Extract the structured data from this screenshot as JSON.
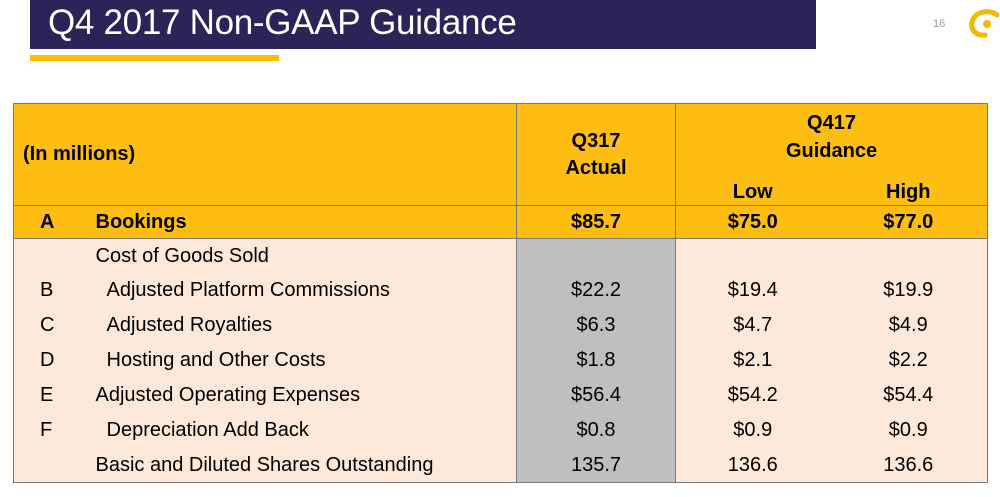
{
  "header": {
    "title": "Q4 2017 Non-GAAP Guidance",
    "page_number": "16"
  },
  "table": {
    "headers": {
      "units": "(In millions)",
      "q317_line1": "Q317",
      "q317_line2": "Actual",
      "q417_line1": "Q417",
      "q417_line2": "Guidance",
      "low": "Low",
      "high": "High"
    },
    "bookings": {
      "letter": "A",
      "label": "Bookings",
      "actual": "$85.7",
      "low": "$75.0",
      "high": "$77.0"
    },
    "rows": [
      {
        "letter": "",
        "label": "Cost of Goods Sold",
        "actual": "",
        "low": "",
        "high": ""
      },
      {
        "letter": "B",
        "label": "Adjusted Platform Commissions",
        "actual": "$22.2",
        "low": "$19.4",
        "high": "$19.9"
      },
      {
        "letter": "C",
        "label": "Adjusted Royalties",
        "actual": "$6.3",
        "low": "$4.7",
        "high": "$4.9"
      },
      {
        "letter": "D",
        "label": "Hosting and Other Costs",
        "actual": "$1.8",
        "low": "$2.1",
        "high": "$2.2"
      },
      {
        "letter": "E",
        "label": "Adjusted Operating Expenses",
        "actual": "$56.4",
        "low": "$54.2",
        "high": "$54.4"
      },
      {
        "letter": "F",
        "label": "Depreciation Add Back",
        "actual": "$0.8",
        "low": "$0.9",
        "high": "$0.9"
      },
      {
        "letter": "",
        "label": "Basic and Diluted Shares Outstanding",
        "actual": "135.7",
        "low": "136.6",
        "high": "136.6"
      }
    ]
  },
  "colors": {
    "title_bar": "#2a2459",
    "accent_yellow": "#fdbd12",
    "row_peach": "#fde9d9",
    "actual_gray": "#bfbfbf"
  }
}
